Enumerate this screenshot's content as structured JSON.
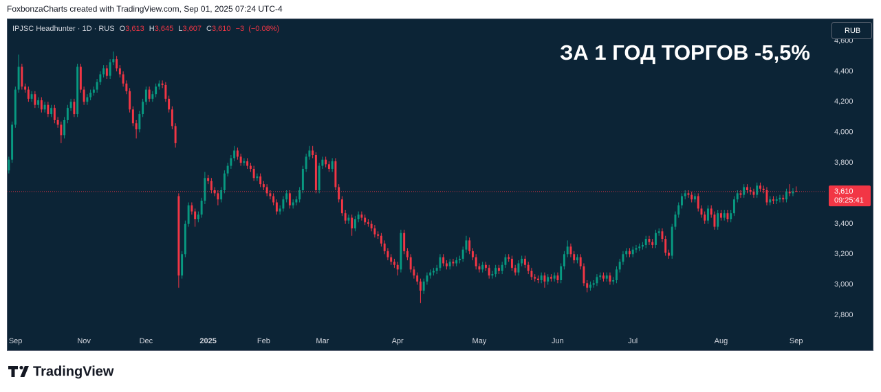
{
  "header_note": "FoxbonzaCharts created with TradingView.com, Sep 01, 2025 07:24 UTC-4",
  "brand": "TradingView",
  "chart_data": {
    "type": "candlestick",
    "annotation": "ЗА 1 ГОД ТОРГОВ -5,5%",
    "currency": "RUB",
    "legend": {
      "symbol": "IPJSC Headhunter · 1D · RUS",
      "fields": [
        {
          "key": "O",
          "value": 3613,
          "label": "3,613"
        },
        {
          "key": "H",
          "value": 3645,
          "label": "3,645"
        },
        {
          "key": "L",
          "value": 3607,
          "label": "3,607"
        },
        {
          "key": "C",
          "value": 3610,
          "label": "3,610"
        }
      ],
      "change": {
        "value": -3,
        "label": "−3"
      },
      "change_pct": {
        "value": -0.08,
        "label": "(−0.08%)"
      }
    },
    "last_price": {
      "value": 3610,
      "label": "3,610"
    },
    "countdown": "09:25:41",
    "up_color": "#089981",
    "down_color": "#f23645",
    "grid": false,
    "xlim": [
      -0.6,
      249.9
    ],
    "xticks": [
      {
        "value": 0,
        "label": "Sep"
      },
      {
        "value": 23,
        "label": "Nov"
      },
      {
        "value": 42,
        "label": "Dec"
      },
      {
        "value": 61,
        "label": "2025"
      },
      {
        "value": 78,
        "label": "Feb"
      },
      {
        "value": 96,
        "label": "Mar"
      },
      {
        "value": 119,
        "label": "Apr"
      },
      {
        "value": 144,
        "label": "May"
      },
      {
        "value": 168,
        "label": "Jun"
      },
      {
        "value": 191,
        "label": "Jul"
      },
      {
        "value": 218,
        "label": "Aug"
      },
      {
        "value": 241,
        "label": "Sep"
      }
    ],
    "ylim": [
      2674,
      4742
    ],
    "yticks": [
      {
        "value": 2800,
        "label": "2,800"
      },
      {
        "value": 3000,
        "label": "3,000"
      },
      {
        "value": 3200,
        "label": "3,200"
      },
      {
        "value": 3400,
        "label": "3,400"
      },
      {
        "value": 3600,
        "label": "3,600"
      },
      {
        "value": 3800,
        "label": "3,800"
      },
      {
        "value": 4000,
        "label": "4,000"
      },
      {
        "value": 4200,
        "label": "4,200"
      },
      {
        "value": 4400,
        "label": "4,400"
      },
      {
        "value": 4600,
        "label": "4,600"
      }
    ],
    "open": [
      3750,
      3820,
      4050,
      4280,
      4430,
      4300,
      4280,
      4220,
      4250,
      4180,
      4210,
      4150,
      4180,
      4120,
      4160,
      4080,
      4050,
      3980,
      4080,
      4160,
      4200,
      4120,
      4430,
      4280,
      4200,
      4230,
      4260,
      4280,
      4330,
      4380,
      4420,
      4370,
      4460,
      4480,
      4420,
      4380,
      4320,
      4270,
      4150,
      4060,
      4020,
      4120,
      4200,
      4280,
      4220,
      4250,
      4300,
      4320,
      4310,
      4220,
      4150,
      4040,
      3580,
      3060,
      3200,
      3400,
      3520,
      3480,
      3430,
      3460,
      3550,
      3700,
      3680,
      3620,
      3600,
      3560,
      3620,
      3730,
      3780,
      3830,
      3880,
      3840,
      3800,
      3810,
      3780,
      3760,
      3700,
      3710,
      3660,
      3640,
      3600,
      3580,
      3540,
      3480,
      3500,
      3560,
      3600,
      3520,
      3540,
      3560,
      3620,
      3760,
      3840,
      3880,
      3850,
      3620,
      3780,
      3820,
      3790,
      3760,
      3810,
      3640,
      3560,
      3470,
      3420,
      3440,
      3370,
      3430,
      3460,
      3440,
      3410,
      3400,
      3370,
      3330,
      3320,
      3270,
      3220,
      3180,
      3150,
      3130,
      3100,
      3340,
      3220,
      3180,
      3100,
      3060,
      3020,
      2960,
      3020,
      3060,
      3080,
      3090,
      3110,
      3180,
      3140,
      3120,
      3150,
      3140,
      3160,
      3170,
      3230,
      3290,
      3220,
      3180,
      3120,
      3100,
      3130,
      3110,
      3060,
      3070,
      3110,
      3090,
      3130,
      3180,
      3170,
      3110,
      3080,
      3140,
      3170,
      3130,
      3090,
      3050,
      3040,
      3030,
      3060,
      3020,
      3050,
      3040,
      3060,
      3030,
      3120,
      3200,
      3250,
      3200,
      3160,
      3180,
      3120,
      3010,
      2980,
      3000,
      3010,
      3050,
      3060,
      3040,
      3060,
      3020,
      3030,
      3100,
      3150,
      3200,
      3220,
      3200,
      3230,
      3240,
      3250,
      3260,
      3300,
      3280,
      3260,
      3340,
      3350,
      3300,
      3210,
      3190,
      3380,
      3460,
      3520,
      3580,
      3600,
      3590,
      3560,
      3580,
      3500,
      3460,
      3420,
      3500,
      3460,
      3380,
      3470,
      3440,
      3470,
      3430,
      3470,
      3560,
      3600,
      3590,
      3640,
      3620,
      3610,
      3590,
      3650,
      3630,
      3620,
      3540,
      3560,
      3550,
      3560,
      3570,
      3560,
      3610,
      3600,
      3613
    ],
    "high": [
      3840,
      4070,
      4300,
      4510,
      4450,
      4320,
      4300,
      4270,
      4270,
      4230,
      4230,
      4200,
      4200,
      4180,
      4180,
      4100,
      4070,
      4100,
      4180,
      4220,
      4220,
      4450,
      4450,
      4300,
      4250,
      4280,
      4300,
      4350,
      4400,
      4440,
      4440,
      4480,
      4530,
      4500,
      4440,
      4400,
      4340,
      4290,
      4170,
      4080,
      4140,
      4220,
      4300,
      4300,
      4270,
      4320,
      4340,
      4340,
      4330,
      4240,
      4170,
      4060,
      3600,
      3220,
      3420,
      3540,
      3540,
      3500,
      3480,
      3570,
      3740,
      3720,
      3700,
      3640,
      3620,
      3640,
      3750,
      3800,
      3850,
      3910,
      3900,
      3860,
      3830,
      3830,
      3800,
      3780,
      3730,
      3730,
      3680,
      3660,
      3620,
      3600,
      3560,
      3520,
      3580,
      3620,
      3620,
      3560,
      3580,
      3640,
      3780,
      3860,
      3910,
      3910,
      3870,
      3800,
      3840,
      3840,
      3810,
      3830,
      3830,
      3660,
      3580,
      3490,
      3460,
      3460,
      3450,
      3480,
      3480,
      3460,
      3430,
      3420,
      3390,
      3350,
      3340,
      3290,
      3240,
      3200,
      3170,
      3150,
      3360,
      3360,
      3240,
      3200,
      3120,
      3080,
      3040,
      3040,
      3080,
      3100,
      3110,
      3130,
      3200,
      3200,
      3160,
      3170,
      3170,
      3180,
      3190,
      3250,
      3320,
      3310,
      3240,
      3200,
      3140,
      3150,
      3150,
      3130,
      3090,
      3130,
      3130,
      3150,
      3200,
      3200,
      3190,
      3130,
      3160,
      3190,
      3190,
      3150,
      3110,
      3070,
      3060,
      3080,
      3080,
      3070,
      3070,
      3080,
      3080,
      3140,
      3220,
      3290,
      3270,
      3220,
      3200,
      3200,
      3140,
      3030,
      3020,
      3030,
      3070,
      3080,
      3080,
      3080,
      3080,
      3050,
      3120,
      3170,
      3220,
      3240,
      3240,
      3250,
      3260,
      3270,
      3280,
      3320,
      3320,
      3300,
      3360,
      3370,
      3370,
      3320,
      3230,
      3400,
      3480,
      3540,
      3600,
      3620,
      3620,
      3610,
      3600,
      3600,
      3520,
      3480,
      3520,
      3520,
      3480,
      3490,
      3490,
      3490,
      3490,
      3490,
      3580,
      3620,
      3620,
      3660,
      3660,
      3640,
      3630,
      3670,
      3670,
      3650,
      3640,
      3580,
      3580,
      3580,
      3590,
      3590,
      3630,
      3660,
      3633,
      3645
    ],
    "low": [
      3730,
      3800,
      4030,
      4260,
      4280,
      4260,
      4200,
      4200,
      4160,
      4160,
      4130,
      4130,
      4100,
      4100,
      4060,
      4030,
      3930,
      3960,
      4060,
      4140,
      4100,
      4100,
      4260,
      4180,
      4180,
      4210,
      4240,
      4260,
      4310,
      4360,
      4350,
      4350,
      4440,
      4400,
      4360,
      4300,
      4250,
      4130,
      4040,
      3960,
      4000,
      4100,
      4180,
      4200,
      4200,
      4230,
      4280,
      4290,
      4200,
      4130,
      4020,
      3900,
      2980,
      3040,
      3180,
      3380,
      3460,
      3380,
      3410,
      3440,
      3530,
      3660,
      3600,
      3580,
      3520,
      3540,
      3600,
      3710,
      3760,
      3810,
      3820,
      3780,
      3780,
      3760,
      3740,
      3680,
      3680,
      3640,
      3620,
      3580,
      3560,
      3520,
      3460,
      3460,
      3480,
      3540,
      3500,
      3500,
      3520,
      3540,
      3600,
      3740,
      3820,
      3830,
      3600,
      3600,
      3760,
      3770,
      3740,
      3740,
      3620,
      3540,
      3450,
      3400,
      3400,
      3320,
      3350,
      3410,
      3420,
      3390,
      3380,
      3350,
      3310,
      3300,
      3250,
      3200,
      3160,
      3130,
      3110,
      3060,
      3080,
      3200,
      3160,
      3080,
      3040,
      3000,
      2880,
      2940,
      3000,
      3040,
      3060,
      3070,
      3090,
      3120,
      3100,
      3100,
      3120,
      3120,
      3140,
      3150,
      3210,
      3200,
      3160,
      3100,
      3080,
      3080,
      3090,
      3040,
      3040,
      3050,
      3070,
      3070,
      3110,
      3150,
      3090,
      3060,
      3060,
      3120,
      3110,
      3070,
      3030,
      3020,
      3010,
      3010,
      2980,
      3000,
      3020,
      3020,
      3010,
      3010,
      3100,
      3180,
      3180,
      3140,
      3140,
      3100,
      2990,
      2950,
      2960,
      2980,
      2990,
      3030,
      3020,
      3020,
      3000,
      3000,
      3010,
      3080,
      3130,
      3180,
      3180,
      3180,
      3210,
      3220,
      3230,
      3240,
      3260,
      3240,
      3240,
      3320,
      3280,
      3190,
      3170,
      3170,
      3360,
      3440,
      3500,
      3560,
      3570,
      3540,
      3540,
      3480,
      3440,
      3400,
      3400,
      3440,
      3360,
      3360,
      3420,
      3420,
      3410,
      3410,
      3450,
      3540,
      3570,
      3570,
      3600,
      3590,
      3570,
      3570,
      3610,
      3600,
      3520,
      3520,
      3530,
      3530,
      3540,
      3540,
      3540,
      3580,
      3580,
      3607
    ],
    "close": [
      3820,
      4050,
      4280,
      4430,
      4300,
      4280,
      4220,
      4250,
      4180,
      4210,
      4150,
      4180,
      4120,
      4160,
      4080,
      4050,
      3980,
      4080,
      4160,
      4200,
      4120,
      4430,
      4280,
      4200,
      4230,
      4260,
      4280,
      4330,
      4380,
      4420,
      4370,
      4460,
      4480,
      4420,
      4380,
      4320,
      4270,
      4150,
      4060,
      4020,
      4120,
      4200,
      4280,
      4220,
      4250,
      4300,
      4320,
      4310,
      4220,
      4150,
      4040,
      3930,
      3060,
      3200,
      3400,
      3520,
      3480,
      3430,
      3460,
      3550,
      3700,
      3680,
      3620,
      3600,
      3560,
      3620,
      3730,
      3780,
      3830,
      3880,
      3840,
      3800,
      3810,
      3780,
      3760,
      3700,
      3710,
      3660,
      3640,
      3600,
      3580,
      3540,
      3480,
      3500,
      3560,
      3600,
      3520,
      3540,
      3560,
      3620,
      3760,
      3840,
      3880,
      3850,
      3620,
      3780,
      3820,
      3790,
      3760,
      3810,
      3640,
      3560,
      3470,
      3420,
      3440,
      3370,
      3430,
      3460,
      3440,
      3410,
      3400,
      3370,
      3330,
      3320,
      3270,
      3220,
      3180,
      3150,
      3130,
      3100,
      3340,
      3220,
      3180,
      3100,
      3060,
      3020,
      2960,
      3020,
      3060,
      3080,
      3090,
      3110,
      3180,
      3140,
      3120,
      3150,
      3140,
      3160,
      3170,
      3230,
      3290,
      3220,
      3180,
      3120,
      3100,
      3130,
      3110,
      3060,
      3070,
      3110,
      3090,
      3130,
      3180,
      3170,
      3110,
      3080,
      3140,
      3170,
      3130,
      3090,
      3050,
      3040,
      3030,
      3060,
      3020,
      3050,
      3040,
      3060,
      3030,
      3120,
      3200,
      3250,
      3200,
      3160,
      3180,
      3120,
      3010,
      2980,
      3000,
      3010,
      3050,
      3060,
      3040,
      3060,
      3020,
      3030,
      3100,
      3150,
      3200,
      3220,
      3200,
      3230,
      3240,
      3250,
      3260,
      3300,
      3280,
      3260,
      3340,
      3350,
      3300,
      3210,
      3190,
      3380,
      3460,
      3520,
      3580,
      3600,
      3590,
      3560,
      3580,
      3500,
      3460,
      3420,
      3500,
      3460,
      3380,
      3470,
      3440,
      3470,
      3430,
      3470,
      3560,
      3600,
      3590,
      3640,
      3620,
      3610,
      3590,
      3650,
      3630,
      3620,
      3540,
      3560,
      3550,
      3560,
      3570,
      3560,
      3610,
      3600,
      3613,
      3610
    ]
  }
}
